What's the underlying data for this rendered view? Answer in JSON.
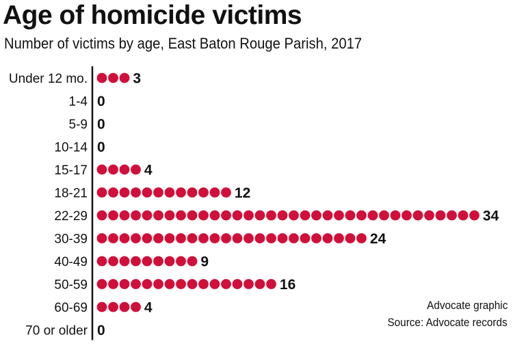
{
  "title": "Age of homicide victims",
  "subtitle": "Number of victims by age, East Baton Rouge Parish, 2017",
  "credit": "Advocate graphic",
  "source": "Source: Advocate records",
  "colors": {
    "dot": "#d0103a",
    "axis": "#111111",
    "text": "#111111"
  },
  "chart_data": {
    "type": "bar",
    "categories": [
      "Under 12 mo.",
      "1-4",
      "5-9",
      "10-14",
      "15-17",
      "18-21",
      "22-29",
      "30-39",
      "40-49",
      "50-59",
      "60-69",
      "70 or older"
    ],
    "values": [
      3,
      0,
      0,
      0,
      4,
      12,
      34,
      24,
      9,
      16,
      4,
      0
    ],
    "title": "Age of homicide victims",
    "subtitle": "Number of victims by age, East Baton Rouge Parish, 2017",
    "encoding": "one dot per victim",
    "orientation": "horizontal"
  }
}
